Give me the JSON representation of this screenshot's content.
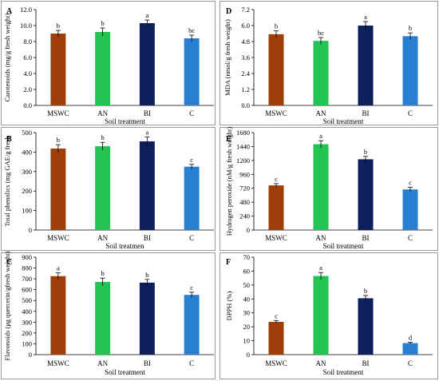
{
  "chart_data": [
    {
      "panel": "A",
      "type": "bar",
      "categories": [
        "MSWC",
        "AN",
        "BI",
        "C"
      ],
      "values": [
        9.0,
        9.2,
        10.3,
        8.4
      ],
      "errors": [
        0.4,
        0.5,
        0.4,
        0.4
      ],
      "letters": [
        "b",
        "b",
        "a",
        "bc"
      ],
      "colors": [
        "#9E3F0A",
        "#22C452",
        "#0E1F5B",
        "#2A7FD1"
      ],
      "ylabel": "Carotenoids (mg/g fresh weight)",
      "xlabel": "Soil treatment",
      "ylim": [
        0,
        12
      ],
      "yticks": [
        "0.0",
        "2.0",
        "4.0",
        "6.0",
        "8.0",
        "10.0",
        "12.0"
      ]
    },
    {
      "panel": "D",
      "type": "bar",
      "categories": [
        "MSWC",
        "AN",
        "BI",
        "C"
      ],
      "values": [
        5.35,
        4.85,
        6.0,
        5.2
      ],
      "errors": [
        0.25,
        0.25,
        0.3,
        0.25
      ],
      "letters": [
        "b",
        "bc",
        "a",
        "b"
      ],
      "colors": [
        "#9E3F0A",
        "#22C452",
        "#0E1F5B",
        "#2A7FD1"
      ],
      "ylabel": "MDA (nmol/g fresh weight)",
      "xlabel": "Soil treatment",
      "ylim": [
        0,
        7.2
      ],
      "yticks": [
        "0.0",
        "1.2",
        "2.4",
        "3.6",
        "4.8",
        "6.0",
        "7.2"
      ]
    },
    {
      "panel": "B",
      "type": "bar",
      "categories": [
        "MSWC",
        "AN",
        "BI",
        "C"
      ],
      "values": [
        418,
        430,
        455,
        325
      ],
      "errors": [
        20,
        20,
        22,
        12
      ],
      "letters": [
        "b",
        "b",
        "a",
        "c"
      ],
      "colors": [
        "#9E3F0A",
        "#22C452",
        "#0E1F5B",
        "#2A7FD1"
      ],
      "ylabel": "Total phenolics (mg GAE/g fresh",
      "xlabel": "Soil treatmen",
      "ylim": [
        0,
        500
      ],
      "yticks": [
        "0",
        "100",
        "200",
        "300",
        "400",
        "500"
      ]
    },
    {
      "panel": "E",
      "type": "bar",
      "categories": [
        "MSWC",
        "AN",
        "BI",
        "C"
      ],
      "values": [
        770,
        1480,
        1220,
        700
      ],
      "errors": [
        30,
        60,
        50,
        35
      ],
      "letters": [
        "c",
        "a",
        "b",
        "c"
      ],
      "colors": [
        "#9E3F0A",
        "#22C452",
        "#0E1F5B",
        "#2A7FD1"
      ],
      "ylabel": "Hydrogen peroxide (nM/g fresh weight)",
      "xlabel": "Soil treatment",
      "ylim": [
        0,
        1680
      ],
      "yticks": [
        "0",
        "240",
        "480",
        "720",
        "960",
        "1200",
        "1440",
        "1680"
      ]
    },
    {
      "panel": "C",
      "type": "bar",
      "categories": [
        "MSWC",
        "AN",
        "BI",
        "C"
      ],
      "values": [
        725,
        672,
        665,
        552
      ],
      "errors": [
        30,
        35,
        30,
        25
      ],
      "letters": [
        "a",
        "b",
        "b",
        "c"
      ],
      "colors": [
        "#9E3F0A",
        "#22C452",
        "#0E1F5B",
        "#2A7FD1"
      ],
      "ylabel": "Flavonoids (μg quercetin/gfresh weight)",
      "xlabel": "Soil treatment",
      "ylim": [
        0,
        900
      ],
      "yticks": [
        "0",
        "100",
        "200",
        "300",
        "400",
        "500",
        "600",
        "700",
        "800",
        "900"
      ]
    },
    {
      "panel": "F",
      "type": "bar",
      "categories": [
        "MSWC",
        "AN",
        "BI",
        "C"
      ],
      "values": [
        23.5,
        56.5,
        40.5,
        8.3
      ],
      "errors": [
        1.0,
        2.5,
        2.0,
        0.5
      ],
      "letters": [
        "c",
        "a",
        "b",
        "d"
      ],
      "colors": [
        "#9E3F0A",
        "#22C452",
        "#0E1F5B",
        "#2A7FD1"
      ],
      "ylabel": "DPPH (%)",
      "xlabel": "Soil treatment",
      "ylim": [
        0,
        70
      ],
      "yticks": [
        "0",
        "10",
        "20",
        "30",
        "40",
        "50",
        "60",
        "70"
      ]
    }
  ]
}
